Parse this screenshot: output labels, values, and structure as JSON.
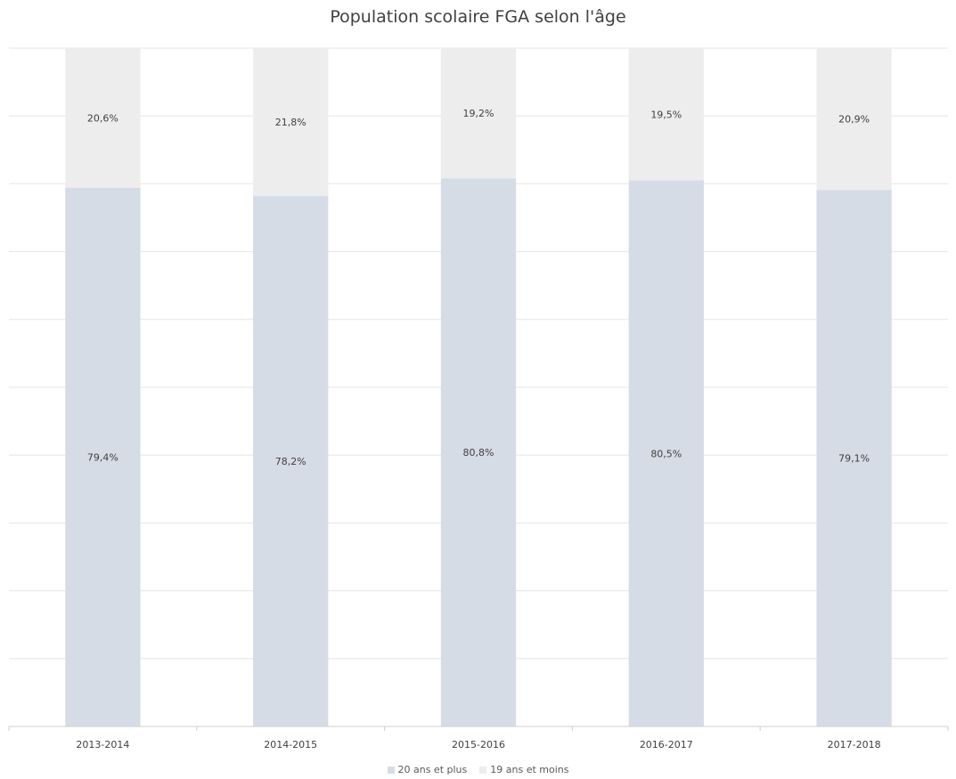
{
  "colors": {
    "series_bottom": "#d6dce5",
    "series_top": "#ededed",
    "grid": "#e6e6e6",
    "axis": "#cfcfcf",
    "text": "#404040"
  },
  "chart_data": {
    "type": "bar",
    "stacked": true,
    "title": "Population scolaire FGA selon l'âge",
    "xlabel": "",
    "ylabel": "",
    "ylim": [
      0,
      100
    ],
    "grid": true,
    "legend_position": "bottom",
    "categories": [
      "2013-2014",
      "2014-2015",
      "2015-2016",
      "2016-2017",
      "2017-2018"
    ],
    "series": [
      {
        "name": "20 ans et plus",
        "values": [
          79.4,
          78.2,
          80.8,
          80.5,
          79.1
        ],
        "labels": [
          "79,4%",
          "78,2%",
          "80,8%",
          "80,5%",
          "79,1%"
        ]
      },
      {
        "name": "19 ans et moins",
        "values": [
          20.6,
          21.8,
          19.2,
          19.5,
          20.9
        ],
        "labels": [
          "20,6%",
          "21,8%",
          "19,2%",
          "19,5%",
          "20,9%"
        ]
      }
    ]
  }
}
